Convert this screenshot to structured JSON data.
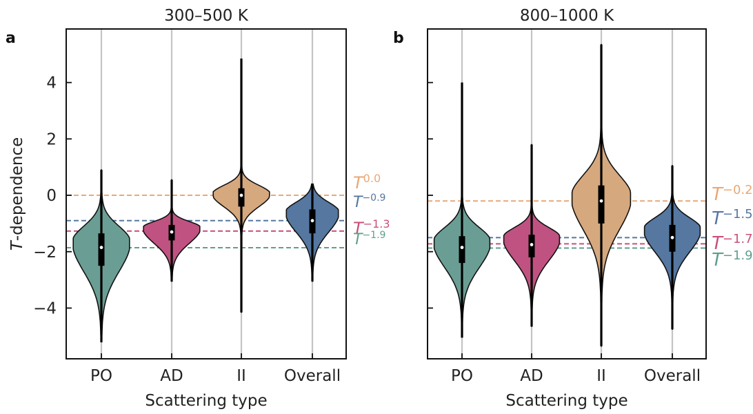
{
  "chart_data": [
    {
      "type": "violin",
      "panel_label": "a",
      "title": "300–500 K",
      "xlabel": "Scattering type",
      "ylabel_italic": "T",
      "ylabel_rest": "-dependence",
      "categories": [
        "PO",
        "AD",
        "II",
        "Overall"
      ],
      "ylim": [
        -5.8,
        5.9
      ],
      "yticks": [
        4,
        2,
        0,
        -2,
        -4
      ],
      "ytick_labels": [
        "4",
        "2",
        "0",
        "−2",
        "−4"
      ],
      "violins": [
        {
          "category": "PO",
          "color": "#6a9e94",
          "min": -5.2,
          "max": 0.9,
          "median": -1.85,
          "q1": -2.5,
          "q3": -1.35,
          "peak": -1.65,
          "halfwidth": 0.4,
          "upper_spread": 0.55,
          "lower_spread": 1.05
        },
        {
          "category": "AD",
          "color": "#c05282",
          "min": -3.05,
          "max": 0.55,
          "median": -1.3,
          "q1": -1.6,
          "q3": -1.05,
          "peak": -1.15,
          "halfwidth": 0.4,
          "upper_spread": 0.22,
          "lower_spread": 0.55
        },
        {
          "category": "II",
          "color": "#d6a87e",
          "min": -4.15,
          "max": 4.85,
          "median": 0.0,
          "q1": -0.4,
          "q3": 0.25,
          "peak": 0.05,
          "halfwidth": 0.4,
          "upper_spread": 0.3,
          "lower_spread": 0.45
        },
        {
          "category": "Overall",
          "color": "#5577a0",
          "min": -3.05,
          "max": 0.4,
          "median": -0.9,
          "q1": -1.35,
          "q3": -0.5,
          "peak": -0.6,
          "halfwidth": 0.37,
          "upper_spread": 0.35,
          "lower_spread": 0.7
        }
      ],
      "reference_lines": [
        {
          "name": "II",
          "y": 0.0,
          "color": "#e8a878",
          "label_base": "T",
          "label_exp": "0.0"
        },
        {
          "name": "Overall",
          "y": -0.9,
          "color": "#5577a0",
          "label_base": "T",
          "label_exp": "−0.9"
        },
        {
          "name": "AD",
          "y": -1.27,
          "color": "#c8507a",
          "label_base": "T",
          "label_exp": "−1.3"
        },
        {
          "name": "PO",
          "y": -1.86,
          "color": "#5e9e8e",
          "label_base": "T",
          "label_exp": "−1.9"
        }
      ]
    },
    {
      "type": "violin",
      "panel_label": "b",
      "title": "800–1000 K",
      "xlabel": "Scattering type",
      "categories": [
        "PO",
        "AD",
        "II",
        "Overall"
      ],
      "ylim": [
        -5.8,
        5.9
      ],
      "yticks": [
        4,
        2,
        0,
        -2,
        -4
      ],
      "violins": [
        {
          "category": "PO",
          "color": "#6a9e94",
          "min": -5.05,
          "max": 4.0,
          "median": -1.85,
          "q1": -2.4,
          "q3": -1.45,
          "peak": -1.65,
          "halfwidth": 0.4,
          "upper_spread": 0.5,
          "lower_spread": 0.9
        },
        {
          "category": "AD",
          "color": "#c05282",
          "min": -4.65,
          "max": 1.8,
          "median": -1.75,
          "q1": -2.2,
          "q3": -1.4,
          "peak": -1.5,
          "halfwidth": 0.4,
          "upper_spread": 0.35,
          "lower_spread": 0.8
        },
        {
          "category": "II",
          "color": "#d6a87e",
          "min": -5.35,
          "max": 5.35,
          "median": -0.2,
          "q1": -1.0,
          "q3": 0.35,
          "peak": -0.05,
          "halfwidth": 0.42,
          "upper_spread": 0.75,
          "lower_spread": 1.15
        },
        {
          "category": "Overall",
          "color": "#5577a0",
          "min": -4.75,
          "max": 1.05,
          "median": -1.5,
          "q1": -2.0,
          "q3": -1.05,
          "peak": -1.2,
          "halfwidth": 0.4,
          "upper_spread": 0.4,
          "lower_spread": 0.8
        }
      ],
      "reference_lines": [
        {
          "name": "II",
          "y": -0.2,
          "color": "#e8a878",
          "label_base": "T",
          "label_exp": "−0.2"
        },
        {
          "name": "Overall",
          "y": -1.5,
          "color": "#5577a0",
          "label_base": "T",
          "label_exp": "−1.5"
        },
        {
          "name": "AD",
          "y": -1.72,
          "color": "#c8507a",
          "label_base": "T",
          "label_exp": "−1.7"
        },
        {
          "name": "PO",
          "y": -1.87,
          "color": "#5e9e8e",
          "label_base": "T",
          "label_exp": "−1.9"
        }
      ]
    }
  ]
}
